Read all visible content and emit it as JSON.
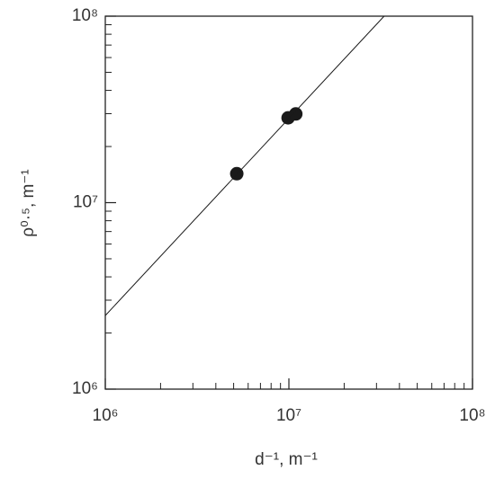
{
  "chart_data": {
    "type": "scatter",
    "x_label": "d⁻¹, m⁻¹",
    "y_label": "ρ⁰·⁵, m⁻¹",
    "log_x": true,
    "log_y": true,
    "xlim": [
      1000000,
      100000000
    ],
    "ylim": [
      1000000,
      100000000
    ],
    "xticks": [
      {
        "value": 1000000,
        "label": "10⁶"
      },
      {
        "value": 10000000,
        "label": "10⁷"
      },
      {
        "value": 100000000,
        "label": "10⁸"
      }
    ],
    "yticks": [
      {
        "value": 1000000,
        "label": "10⁶"
      },
      {
        "value": 10000000,
        "label": "10⁷"
      },
      {
        "value": 100000000,
        "label": "10⁸"
      }
    ],
    "xminorticks": [
      2000000,
      3000000,
      4000000,
      5000000,
      6000000,
      7000000,
      8000000,
      9000000,
      20000000,
      30000000,
      40000000,
      50000000,
      60000000,
      70000000,
      80000000,
      90000000
    ],
    "yminorticks": [
      2000000,
      3000000,
      4000000,
      5000000,
      6000000,
      7000000,
      8000000,
      9000000,
      20000000,
      30000000,
      40000000,
      50000000,
      60000000,
      70000000,
      80000000,
      90000000
    ],
    "series": [
      {
        "kind": "points",
        "color": "#1a1a1a",
        "x": [
          5200000,
          9900000,
          10900000
        ],
        "values": [
          14300000,
          28500000,
          29900000
        ]
      },
      {
        "kind": "line",
        "color": "#1a1a1a",
        "x": [
          1000000,
          33000000
        ],
        "values": [
          2480000,
          100000000
        ]
      }
    ]
  }
}
